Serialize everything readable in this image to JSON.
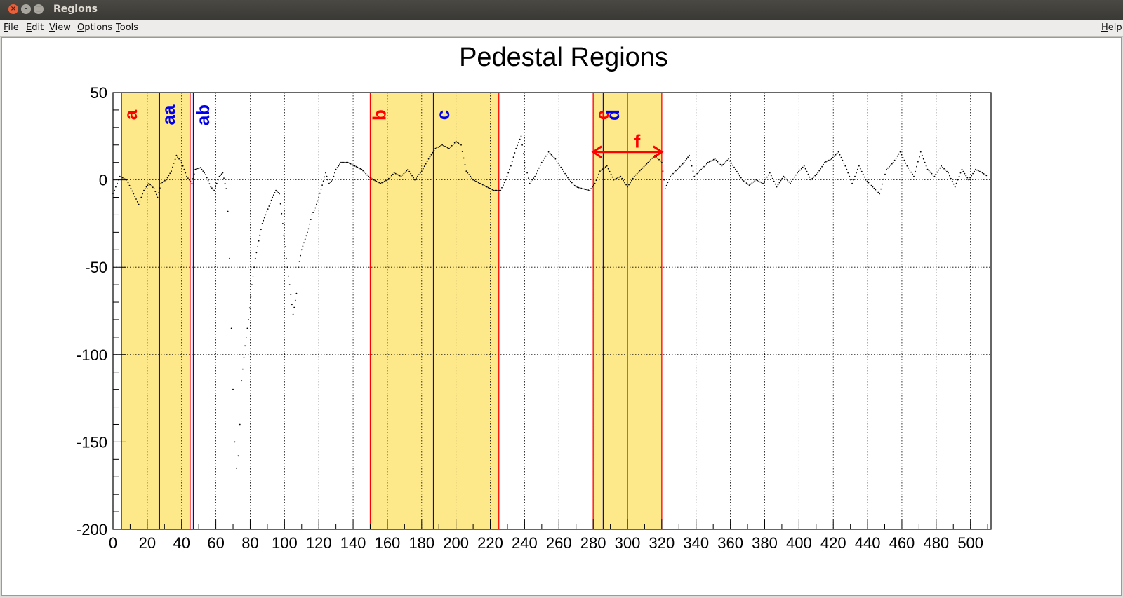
{
  "window": {
    "title": "Regions"
  },
  "menu": {
    "file": "File",
    "edit": "Edit",
    "view": "View",
    "options": "Options",
    "tools": "Tools",
    "help": "Help"
  },
  "colors": {
    "band_fill": "#fde88a",
    "red": "#ff0000",
    "blue": "#0000ee",
    "data": "#000000"
  },
  "chart_data": {
    "type": "scatter",
    "title": "Pedestal Regions",
    "xlim": [
      0,
      512
    ],
    "ylim": [
      -200,
      50
    ],
    "x_ticks": [
      0,
      20,
      40,
      60,
      80,
      100,
      120,
      140,
      160,
      180,
      200,
      220,
      240,
      260,
      280,
      300,
      320,
      340,
      360,
      380,
      400,
      420,
      440,
      460,
      480,
      500
    ],
    "y_ticks": [
      50,
      0,
      -50,
      -100,
      -150,
      -200
    ],
    "grid": true,
    "shaded_regions": [
      {
        "from": 5,
        "to": 45
      },
      {
        "from": 150,
        "to": 225
      },
      {
        "from": 280,
        "to": 320
      }
    ],
    "markers": [
      {
        "label": "a",
        "x": 5,
        "color": "red"
      },
      {
        "label": "aa",
        "x": 27,
        "color": "blue"
      },
      {
        "label": "ab",
        "x": 47,
        "color": "blue"
      },
      {
        "label": "b",
        "x": 150,
        "color": "red"
      },
      {
        "label": "c",
        "x": 187,
        "color": "blue"
      },
      {
        "label": "e",
        "x": 280,
        "color": "red"
      },
      {
        "label": "d",
        "x": 286,
        "color": "blue"
      }
    ],
    "extra_lines": [
      {
        "x": 45,
        "color": "red"
      },
      {
        "x": 225,
        "color": "red"
      },
      {
        "x": 300,
        "color": "red"
      },
      {
        "x": 320,
        "color": "red"
      }
    ],
    "arrow": {
      "label": "f",
      "from": 280,
      "to": 320,
      "y": 16
    },
    "series_points": [
      [
        0,
        -8
      ],
      [
        4,
        2
      ],
      [
        8,
        0
      ],
      [
        12,
        -8
      ],
      [
        15,
        -14
      ],
      [
        18,
        -6
      ],
      [
        21,
        -2
      ],
      [
        24,
        -5
      ],
      [
        26,
        -10
      ],
      [
        28,
        -2
      ],
      [
        31,
        0
      ],
      [
        34,
        5
      ],
      [
        37,
        14
      ],
      [
        40,
        10
      ],
      [
        43,
        2
      ],
      [
        46,
        -2
      ],
      [
        48,
        6
      ],
      [
        51,
        7
      ],
      [
        54,
        3
      ],
      [
        57,
        -4
      ],
      [
        59,
        -6
      ],
      [
        62,
        2
      ],
      [
        64,
        4
      ],
      [
        66,
        -5
      ],
      [
        67,
        -18
      ],
      [
        68,
        -45
      ],
      [
        69,
        -85
      ],
      [
        70,
        -120
      ],
      [
        71,
        -150
      ],
      [
        72,
        -165
      ],
      [
        73,
        -158
      ],
      [
        74,
        -140
      ],
      [
        75,
        -115
      ],
      [
        77,
        -95
      ],
      [
        79,
        -80
      ],
      [
        81,
        -60
      ],
      [
        83,
        -45
      ],
      [
        85,
        -35
      ],
      [
        87,
        -25
      ],
      [
        89,
        -20
      ],
      [
        91,
        -15
      ],
      [
        93,
        -10
      ],
      [
        95,
        -6
      ],
      [
        97,
        -8
      ],
      [
        99,
        -25
      ],
      [
        101,
        -45
      ],
      [
        103,
        -60
      ],
      [
        105,
        -77
      ],
      [
        107,
        -65
      ],
      [
        108,
        -50
      ],
      [
        110,
        -40
      ],
      [
        112,
        -34
      ],
      [
        114,
        -28
      ],
      [
        116,
        -20
      ],
      [
        118,
        -16
      ],
      [
        120,
        -10
      ],
      [
        122,
        -3
      ],
      [
        124,
        4
      ],
      [
        126,
        -2
      ],
      [
        128,
        0
      ],
      [
        130,
        6
      ],
      [
        133,
        10
      ],
      [
        137,
        10
      ],
      [
        141,
        8
      ],
      [
        145,
        6
      ],
      [
        149,
        2
      ],
      [
        152,
        0
      ],
      [
        156,
        -2
      ],
      [
        160,
        0
      ],
      [
        164,
        4
      ],
      [
        168,
        2
      ],
      [
        172,
        6
      ],
      [
        176,
        0
      ],
      [
        180,
        5
      ],
      [
        184,
        12
      ],
      [
        188,
        18
      ],
      [
        192,
        20
      ],
      [
        196,
        18
      ],
      [
        200,
        22
      ],
      [
        203,
        20
      ],
      [
        206,
        5
      ],
      [
        210,
        0
      ],
      [
        214,
        -2
      ],
      [
        218,
        -4
      ],
      [
        222,
        -6
      ],
      [
        226,
        -6
      ],
      [
        229,
        0
      ],
      [
        232,
        8
      ],
      [
        235,
        18
      ],
      [
        238,
        25
      ],
      [
        240,
        10
      ],
      [
        243,
        -2
      ],
      [
        246,
        2
      ],
      [
        250,
        10
      ],
      [
        254,
        16
      ],
      [
        258,
        12
      ],
      [
        262,
        6
      ],
      [
        266,
        0
      ],
      [
        270,
        -4
      ],
      [
        274,
        -5
      ],
      [
        278,
        -6
      ],
      [
        281,
        -2
      ],
      [
        284,
        5
      ],
      [
        288,
        8
      ],
      [
        292,
        0
      ],
      [
        296,
        2
      ],
      [
        300,
        -4
      ],
      [
        304,
        2
      ],
      [
        308,
        6
      ],
      [
        312,
        10
      ],
      [
        316,
        14
      ],
      [
        320,
        10
      ],
      [
        322,
        -5
      ],
      [
        325,
        2
      ],
      [
        329,
        6
      ],
      [
        333,
        10
      ],
      [
        336,
        14
      ],
      [
        339,
        2
      ],
      [
        343,
        6
      ],
      [
        347,
        10
      ],
      [
        351,
        12
      ],
      [
        355,
        8
      ],
      [
        359,
        12
      ],
      [
        363,
        6
      ],
      [
        367,
        0
      ],
      [
        371,
        -3
      ],
      [
        375,
        0
      ],
      [
        379,
        -2
      ],
      [
        383,
        4
      ],
      [
        387,
        -4
      ],
      [
        391,
        2
      ],
      [
        395,
        -2
      ],
      [
        399,
        4
      ],
      [
        403,
        8
      ],
      [
        407,
        0
      ],
      [
        411,
        4
      ],
      [
        415,
        10
      ],
      [
        419,
        12
      ],
      [
        423,
        16
      ],
      [
        427,
        8
      ],
      [
        431,
        -2
      ],
      [
        435,
        8
      ],
      [
        439,
        0
      ],
      [
        443,
        -4
      ],
      [
        447,
        -8
      ],
      [
        451,
        6
      ],
      [
        455,
        10
      ],
      [
        459,
        16
      ],
      [
        463,
        8
      ],
      [
        467,
        2
      ],
      [
        471,
        16
      ],
      [
        475,
        6
      ],
      [
        479,
        2
      ],
      [
        483,
        8
      ],
      [
        487,
        4
      ],
      [
        491,
        -4
      ],
      [
        495,
        6
      ],
      [
        499,
        0
      ],
      [
        503,
        6
      ],
      [
        507,
        4
      ],
      [
        510,
        2
      ]
    ]
  }
}
